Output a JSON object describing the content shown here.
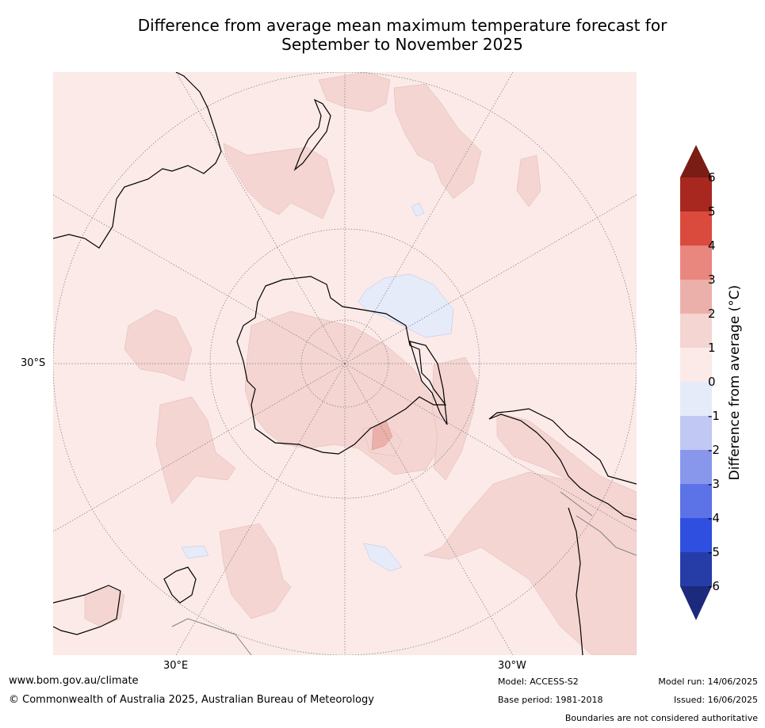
{
  "title": {
    "line1": "Difference from average mean maximum temperature forecast for",
    "line2": "September to November 2025"
  },
  "map": {
    "projection": "south polar stereographic",
    "graticule": {
      "lat_label": "30°S",
      "lon_labels": [
        "30°E",
        "30°W"
      ]
    },
    "fill_colors": {
      "0_to_1": "#fbeae8",
      "1_to_2": "#f4d5d2",
      "2_to_3": "#ecb0aa",
      "-1_to_0": "#e6ebfa"
    },
    "coastline_color": "#000000",
    "boundary_color": "#808080"
  },
  "colorbar": {
    "title": "Difference from average (°C)",
    "ticks": [
      "6",
      "5",
      "4",
      "3",
      "2",
      "1",
      "0",
      "-1",
      "-2",
      "-3",
      "-4",
      "-5",
      "-6"
    ],
    "colors": [
      "#a8281f",
      "#da4b3e",
      "#e9867e",
      "#ecb0aa",
      "#f4d5d2",
      "#fbeae8",
      "#e6ebfa",
      "#c0c8f3",
      "#8897ec",
      "#5b73e6",
      "#2e4fe0",
      "#263da8"
    ],
    "extend_max_color": "#7a1d15",
    "extend_min_color": "#1b2a7d"
  },
  "footer": {
    "url": "www.bom.gov.au/climate",
    "copyright": "© Commonwealth of Australia 2025, Australian Bureau of Meteorology",
    "model": "Model: ACCESS-S2",
    "base_period": "Base period: 1981-2018",
    "model_run": "Model run: 14/06/2025",
    "issued": "Issued: 16/06/2025",
    "disclaimer": "Boundaries are not considered authoritative"
  }
}
